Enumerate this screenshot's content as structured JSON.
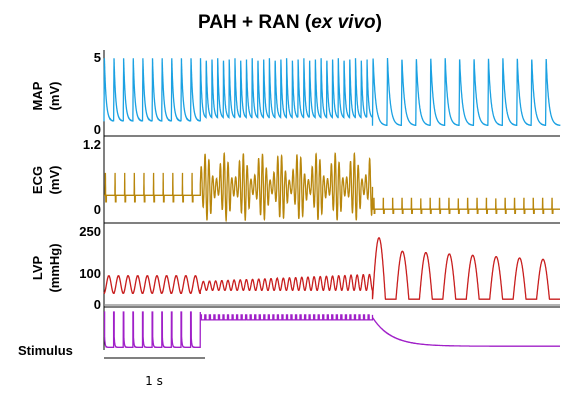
{
  "title": {
    "main": "PAH + RAN (",
    "italic": "ex vivo",
    "close": ")"
  },
  "scale_bar": {
    "label": "1 s",
    "duration_s": 1
  },
  "chart_data": {
    "type": "line",
    "time_range_s": [
      0,
      4.5
    ],
    "panels": [
      {
        "id": "map",
        "label_line1": "MAP",
        "label_line2": "(mV)",
        "color": "#1ba1e2",
        "ylim": [
          0,
          5
        ],
        "ticks": [
          "5",
          "0"
        ],
        "segments": [
          {
            "t": [
              0.0,
              0.95
            ],
            "beats": 10,
            "low": 0.6,
            "high": 5.0,
            "kind": "ap"
          },
          {
            "t": [
              0.95,
              2.65
            ],
            "beats": 30,
            "low": 0.6,
            "high": 5.0,
            "kind": "ap-fast"
          },
          {
            "t": [
              2.65,
              4.5
            ],
            "beats": 13,
            "low": 0.3,
            "high": 5.0,
            "kind": "ap"
          }
        ]
      },
      {
        "id": "ecg",
        "label_line1": "ECG",
        "label_line2": "(mV)",
        "color": "#b8860b",
        "ylim": [
          0,
          1.2
        ],
        "ticks": [
          "1.2",
          "0"
        ],
        "segments": [
          {
            "t": [
              0.0,
              0.95
            ],
            "beats": 10,
            "baseline": 0.3,
            "amp": 0.4,
            "kind": "spike"
          },
          {
            "t": [
              0.95,
              2.65
            ],
            "beats": 45,
            "baseline": 0.45,
            "amp": 0.6,
            "kind": "vf"
          },
          {
            "t": [
              2.65,
              4.5
            ],
            "beats": 20,
            "baseline": 0.05,
            "amp": 0.25,
            "kind": "spike"
          }
        ]
      },
      {
        "id": "lvp",
        "label_line1": "LVP",
        "label_line2": "(mmHg)",
        "color": "#c81e1e",
        "ylim": [
          0,
          250
        ],
        "ticks": [
          "250",
          "100",
          "0"
        ],
        "segments": [
          {
            "t": [
              0.0,
              0.95
            ],
            "beats": 10,
            "low": 40,
            "high": 100,
            "kind": "sine"
          },
          {
            "t": [
              0.95,
              2.65
            ],
            "beats": 28,
            "low": 50,
            "high": 105,
            "kind": "sine-grow"
          },
          {
            "t": [
              2.65,
              4.5
            ],
            "beats": 8,
            "low": 20,
            "high": 230,
            "kind": "lv-big"
          }
        ]
      },
      {
        "id": "stimulus",
        "label_line1": "Stimulus",
        "label_line2": "",
        "color": "#a020c8",
        "ylim": [
          0,
          1
        ],
        "ticks": [],
        "segments": [
          {
            "t": [
              0.0,
              0.95
            ],
            "beats": 10,
            "kind": "pulse"
          },
          {
            "t": [
              0.95,
              2.65
            ],
            "beats": 38,
            "kind": "dense"
          },
          {
            "t": [
              2.65,
              4.5
            ],
            "kind": "decay"
          }
        ]
      }
    ]
  }
}
